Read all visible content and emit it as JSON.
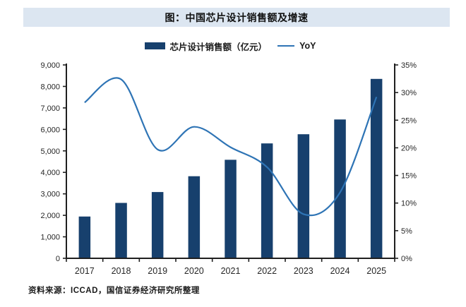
{
  "title": "图：中国芯片设计销售额及增速",
  "legend": {
    "bar_label": "芯片设计销售额（亿元）",
    "line_label": "YoY"
  },
  "footer": "资料来源：ICCAD，国信证券经济研究所整理",
  "colors": {
    "bar": "#17406d",
    "line": "#2e74b5",
    "title_band_bg": "#dce6f1",
    "axis": "#1f1f1f",
    "tick_text": "#262626"
  },
  "chart_data": {
    "type": "bar",
    "subtype": "bar+line combo, dual axis",
    "title": "图：中国芯片设计销售额及增速",
    "categories": [
      "2017",
      "2018",
      "2019",
      "2020",
      "2021",
      "2022",
      "2023",
      "2024",
      "2025"
    ],
    "series": [
      {
        "name": "芯片设计销售额（亿元）",
        "type": "bar",
        "axis": "left",
        "values": [
          1946,
          2577,
          3085,
          3819,
          4587,
          5346,
          5774,
          6460,
          8349
        ]
      },
      {
        "name": "YoY",
        "type": "line",
        "axis": "right",
        "unit": "%",
        "values": [
          28.2,
          32.4,
          19.7,
          23.8,
          20.1,
          16.5,
          8.0,
          11.9,
          29.2
        ]
      }
    ],
    "left_axis": {
      "min": 0,
      "max": 9000,
      "step": 1000,
      "tick_labels": [
        "9,000",
        "8,000",
        "7,000",
        "6,000",
        "5,000",
        "4,000",
        "3,000",
        "2,000",
        "1,000",
        "0"
      ]
    },
    "right_axis": {
      "min": 0,
      "max": 35,
      "step": 5,
      "tick_labels": [
        "35%",
        "30%",
        "25%",
        "20%",
        "15%",
        "10%",
        "5%",
        "0%"
      ]
    },
    "legend_position": "top",
    "grid": false,
    "line_smooth": true
  }
}
